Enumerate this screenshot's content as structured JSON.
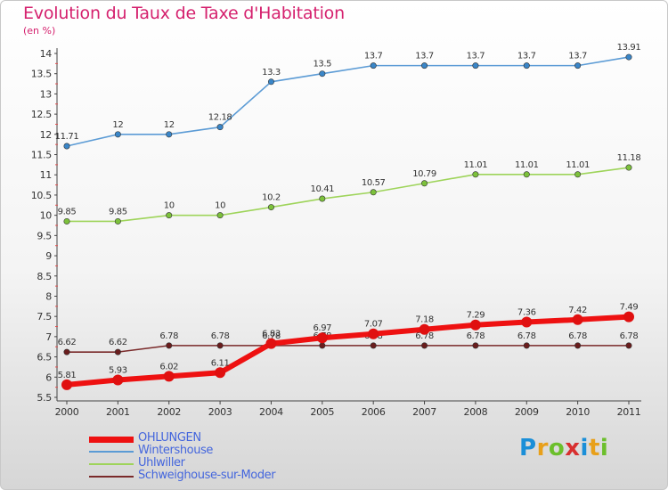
{
  "title": "Evolution du Taux de Taxe d'Habitation",
  "unit": "(en %)",
  "logo": {
    "text": "Proxiti",
    "letter_colors": [
      "#1b8fd8",
      "#e8a01a",
      "#6cbf2c",
      "#d82f2f",
      "#1b8fd8",
      "#e8a01a",
      "#6cbf2c"
    ]
  },
  "chart_data": {
    "type": "line",
    "title": "Evolution du Taux de Taxe d'Habitation",
    "ylabel": "(en %)",
    "xlabel": "",
    "ylim": [
      5.5,
      14.0
    ],
    "y_ticks": [
      "5.5",
      "6",
      "6.5",
      "7",
      "7.5",
      "8",
      "8.5",
      "9",
      "9.5",
      "10",
      "10.5",
      "11",
      "11.5",
      "12",
      "12.5",
      "13",
      "13.5",
      "14"
    ],
    "categories": [
      "2000",
      "2001",
      "2002",
      "2003",
      "2004",
      "2005",
      "2006",
      "2007",
      "2008",
      "2009",
      "2010",
      "2011"
    ],
    "grid": false,
    "legend_position": "bottom-left",
    "series": [
      {
        "name": "Wintershouse",
        "color": "#5b9bd5",
        "marker_color": "#3a86c8",
        "values": [
          11.71,
          12,
          12,
          12.18,
          13.3,
          13.5,
          13.7,
          13.7,
          13.7,
          13.7,
          13.7,
          13.91
        ],
        "labels": [
          "11.71",
          "12",
          "12",
          "12.18",
          "13.3",
          "13.5",
          "13.7",
          "13.7",
          "13.7",
          "13.7",
          "13.7",
          "13.91"
        ]
      },
      {
        "name": "Uhlwiller",
        "color": "#9ed45a",
        "marker_color": "#7cc13b",
        "values": [
          9.85,
          9.85,
          10,
          10,
          10.2,
          10.41,
          10.57,
          10.79,
          11.01,
          11.01,
          11.01,
          11.18
        ],
        "labels": [
          "9.85",
          "9.85",
          "10",
          "10",
          "10.2",
          "10.41",
          "10.57",
          "10.79",
          "11.01",
          "11.01",
          "11.01",
          "11.18"
        ]
      },
      {
        "name": "Schweighouse-sur-Moder",
        "color": "#7a2a2a",
        "marker_color": "#6a1d1d",
        "values": [
          6.62,
          6.62,
          6.78,
          6.78,
          6.78,
          6.78,
          6.78,
          6.78,
          6.78,
          6.78,
          6.78,
          6.78
        ],
        "labels": [
          "6.62",
          "6.62",
          "6.78",
          "6.78",
          "6.78",
          "6.78",
          "6.78",
          "6.78",
          "6.78",
          "6.78",
          "6.78",
          "6.78"
        ]
      },
      {
        "name": "OHLUNGEN",
        "color": "#ee1111",
        "marker_color": "#e01010",
        "values": [
          5.81,
          5.93,
          6.02,
          6.11,
          6.83,
          6.97,
          7.07,
          7.18,
          7.29,
          7.36,
          7.42,
          7.49
        ],
        "labels": [
          "5.81",
          "5.93",
          "6.02",
          "6.11",
          "6.83",
          "6.97",
          "7.07",
          "7.18",
          "7.29",
          "7.36",
          "7.42",
          "7.49"
        ]
      }
    ],
    "legend": [
      {
        "name": "OHLUNGEN",
        "color": "#ee1111",
        "text_color": "#4466dd"
      },
      {
        "name": "Wintershouse",
        "color": "#5b9bd5",
        "text_color": "#4466dd"
      },
      {
        "name": "Uhlwiller",
        "color": "#9ed45a",
        "text_color": "#4466dd"
      },
      {
        "name": "Schweighouse-sur-Moder",
        "color": "#7a2a2a",
        "text_color": "#4466dd"
      }
    ]
  }
}
